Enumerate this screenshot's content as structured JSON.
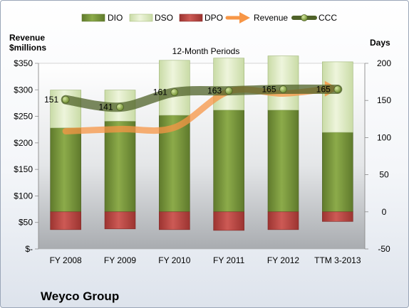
{
  "company": "Weyco Group",
  "chart_data": {
    "type": "bar",
    "title": "12-Month Periods",
    "left_axis_title": [
      "Revenue",
      "$millions"
    ],
    "right_axis_title": "Days",
    "categories": [
      "FY 2008",
      "FY 2009",
      "FY 2010",
      "FY 2011",
      "FY 2012",
      "TTM 3-2013"
    ],
    "left_axis": {
      "range": [
        0,
        350
      ],
      "ticks": [
        0,
        50,
        100,
        150,
        200,
        250,
        300,
        350
      ],
      "tick_labels": [
        "$-",
        "$50",
        "$100",
        "$150",
        "$200",
        "$250",
        "$300",
        "$350"
      ]
    },
    "right_axis": {
      "range": [
        -50,
        200
      ],
      "ticks": [
        -50,
        0,
        50,
        100,
        150,
        200
      ]
    },
    "legend": {
      "position": "top",
      "entries": [
        "DIO",
        "DSO",
        "DPO",
        "Revenue",
        "CCC"
      ]
    },
    "series": [
      {
        "name": "DIO",
        "axis": "right",
        "values": [
          113,
          122,
          130,
          137,
          137,
          107
        ],
        "color": "#77933c"
      },
      {
        "name": "DSO",
        "axis": "right",
        "values": [
          51,
          42,
          74,
          70,
          73,
          95
        ],
        "color": "#d7e4bd"
      },
      {
        "name": "DPO",
        "axis": "right",
        "values": [
          -24,
          -23,
          -24,
          -25,
          -24,
          -13
        ],
        "color": "#c0504d"
      },
      {
        "name": "Revenue",
        "axis": "left",
        "values": [
          222,
          226,
          229,
          297,
          293,
          302
        ],
        "color": "#f79646"
      },
      {
        "name": "CCC",
        "axis": "right",
        "values": [
          151,
          141,
          161,
          163,
          165,
          165
        ],
        "labels": [
          "151",
          "141",
          "161",
          "163",
          "165",
          "165"
        ],
        "color": "#4f6228"
      }
    ],
    "grid": false
  }
}
